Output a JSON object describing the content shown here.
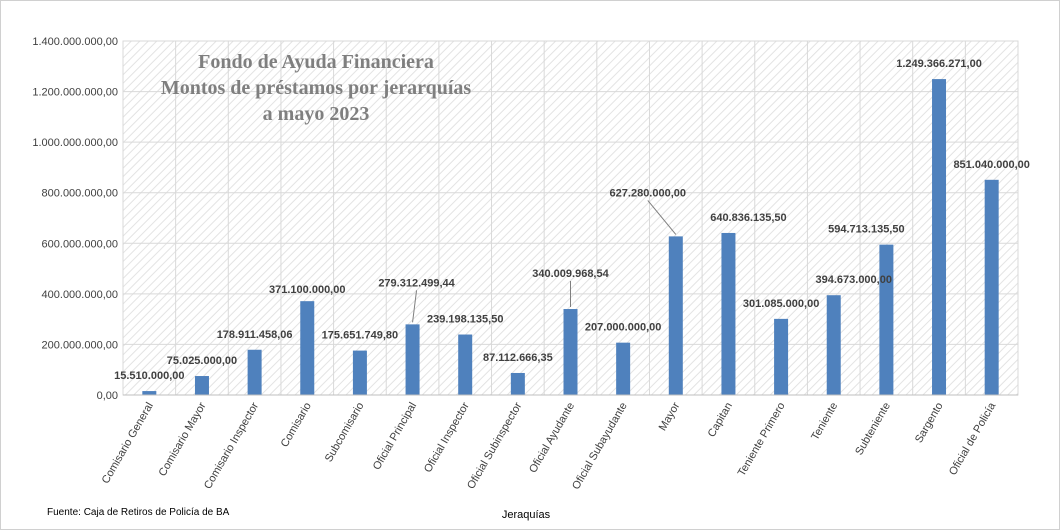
{
  "chart_data": {
    "type": "bar",
    "title_lines": [
      "Fondo de Ayuda Financiera",
      "Montos de préstamos por jerarquías",
      "a mayo 2023"
    ],
    "xlabel": "Jeraquías",
    "ylabel": "",
    "source": "Fuente: Caja de Retiros de Policía de BA",
    "ylim": [
      0,
      1400000000
    ],
    "yticks": [
      0,
      200000000,
      400000000,
      600000000,
      800000000,
      1000000000,
      1200000000,
      1400000000
    ],
    "ytick_labels": [
      "0,00",
      "200.000.000,00",
      "400.000.000,00",
      "600.000.000,00",
      "800.000.000,00",
      "1.000.000.000,00",
      "1.200.000.000,00",
      "1.400.000.000,00"
    ],
    "categories": [
      "Comisario General",
      "Comisario Mayor",
      "Comisario Inspector",
      "Comisario",
      "Subcomisario",
      "Oficial Principal",
      "Oficial Inspector",
      "Oficial Subinspector",
      "Oficial Ayudante",
      "Oficial Subayudante",
      "Mayor",
      "Capitan",
      "Teniente Primero",
      "Teniente",
      "Subteniente",
      "Sargento",
      "Oficial de Policía"
    ],
    "values": [
      15510000.0,
      75025000.0,
      178911458.06,
      371100000.0,
      175651749.8,
      279312499.44,
      239198135.5,
      87112666.35,
      340009968.54,
      207000000.0,
      627280000.0,
      640836135.5,
      301085000.0,
      394673000.0,
      594713135.5,
      1249366271.0,
      851040000.0
    ],
    "data_labels": [
      "15.510.000,00",
      "75.025.000,00",
      "178.911.458,06",
      "371.100.000,00",
      "175.651.749,80",
      "279.312.499,44",
      "239.198.135,50",
      "87.112.666,35",
      "340.009.968,54",
      "207.000.000,00",
      "627.280.000,00",
      "640.836.135,50",
      "301.085.000,00",
      "394.673.000,00",
      "594.713.135,50",
      "1.249.366.271,00",
      "851.040.000,00"
    ],
    "bar_color": "#4f81bd",
    "grid": true,
    "legend": "none"
  }
}
